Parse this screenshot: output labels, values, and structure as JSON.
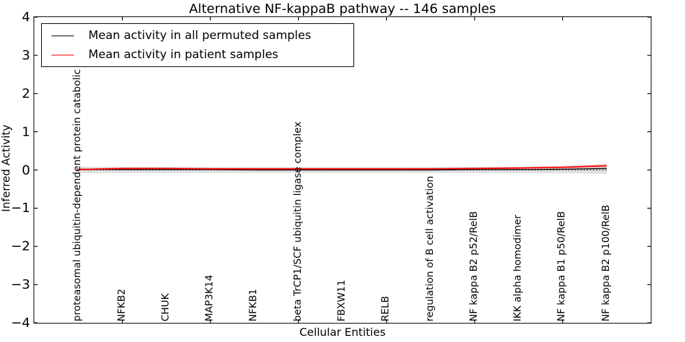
{
  "chart_data": {
    "type": "line",
    "title": "Alternative NF-kappaB pathway -- 146 samples",
    "xlabel": "Cellular Entities",
    "ylabel": "Inferred Activity",
    "xlim": [
      0,
      14
    ],
    "ylim": [
      -4,
      4
    ],
    "yticks": [
      -4,
      -3,
      -2,
      -1,
      0,
      1,
      2,
      3,
      4
    ],
    "xticks_major": [
      2,
      4,
      6,
      8,
      10,
      12
    ],
    "grid": false,
    "x": [
      1,
      2,
      3,
      4,
      5,
      6,
      7,
      8,
      9,
      10,
      11,
      12,
      13
    ],
    "categories": [
      "proteasomal ubiquitin-dependent protein catabolic pr",
      "NFKB2",
      "CHUK",
      "MAP3K14",
      "NFKB1",
      "beta TrCP1/SCF ubiquitin ligase complex",
      "FBXW11",
      "RELB",
      "regulation of B cell activation",
      "NF kappa B2 p52/RelB",
      "IKK alpha homodimer",
      "NF kappa B1 p50/RelB",
      "NF kappa B2 p100/RelB"
    ],
    "series": [
      {
        "name": "Mean activity in all permuted samples",
        "color": "#000000",
        "width": 1.3,
        "values": [
          0.02,
          0.01,
          0.01,
          0.01,
          0.0,
          0.0,
          0.0,
          0.0,
          0.0,
          0.01,
          0.01,
          0.02,
          0.04
        ]
      },
      {
        "name": "Mean activity in patient samples",
        "color": "#ff0000",
        "width": 1.8,
        "values": [
          0.01,
          0.04,
          0.04,
          0.03,
          0.03,
          0.03,
          0.03,
          0.03,
          0.03,
          0.04,
          0.05,
          0.07,
          0.11
        ]
      }
    ],
    "permuted_band": {
      "color": "#c8c8c8",
      "opacity": 0.55,
      "upper": [
        0.09,
        0.08,
        0.08,
        0.08,
        0.08,
        0.08,
        0.08,
        0.08,
        0.08,
        0.08,
        0.09,
        0.1,
        0.15
      ],
      "lower": [
        -0.09,
        -0.08,
        -0.08,
        -0.08,
        -0.08,
        -0.08,
        -0.08,
        -0.08,
        -0.08,
        -0.08,
        -0.08,
        -0.09,
        -0.1
      ]
    },
    "patient_band": {
      "color": "#ff0000",
      "opacity": 0.12,
      "upper": [
        0.03,
        0.06,
        0.06,
        0.05,
        0.05,
        0.05,
        0.05,
        0.05,
        0.05,
        0.06,
        0.08,
        0.11,
        0.16
      ],
      "lower": [
        -0.01,
        0.01,
        0.01,
        0.01,
        0.01,
        0.01,
        0.01,
        0.01,
        0.01,
        0.02,
        0.02,
        0.03,
        0.05
      ]
    },
    "zero_line": {
      "value": 0,
      "style": "dotted",
      "color": "#000000"
    }
  },
  "legend": {
    "entries": [
      {
        "label": "Mean activity in all permuted samples",
        "color": "#000000"
      },
      {
        "label": "Mean activity in patient samples",
        "color": "#ff0000"
      }
    ]
  }
}
